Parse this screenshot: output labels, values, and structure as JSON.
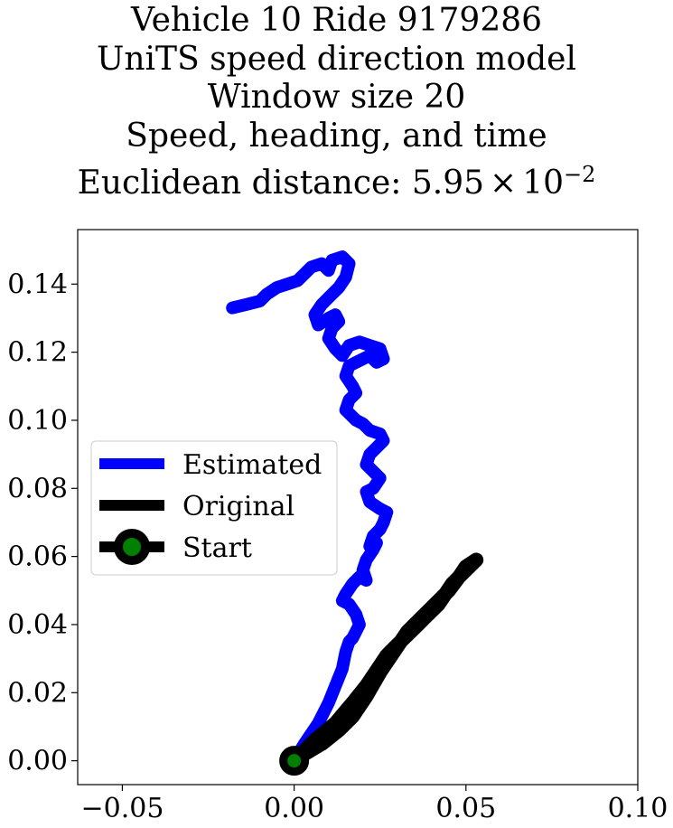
{
  "chart_data": {
    "type": "line",
    "title_lines": [
      "Vehicle 10 Ride 9179286",
      "UniTS speed direction model",
      "Window size 20",
      "Speed, heading, and time"
    ],
    "title_metric_prefix": "Euclidean distance: ",
    "title_metric_mantissa": "5.95",
    "title_metric_times": "×",
    "title_metric_base": "10",
    "title_metric_exponent": "−2",
    "xlabel": "",
    "ylabel": "",
    "xlim": [
      -0.063,
      0.1
    ],
    "ylim": [
      -0.007,
      0.156
    ],
    "x_ticks": [
      -0.05,
      0.0,
      0.05,
      0.1
    ],
    "x_tick_labels": [
      "−0.05",
      "0.00",
      "0.05",
      "0.10"
    ],
    "y_ticks": [
      0.0,
      0.02,
      0.04,
      0.06,
      0.08,
      0.1,
      0.12,
      0.14
    ],
    "y_tick_labels": [
      "0.00",
      "0.02",
      "0.04",
      "0.06",
      "0.08",
      "0.10",
      "0.12",
      "0.14"
    ],
    "grid": false,
    "legend_position": "center-left",
    "series": [
      {
        "name": "Estimated",
        "color": "#0000ff",
        "x": [
          0.0,
          0.003,
          0.007,
          0.01,
          0.012,
          0.014,
          0.015,
          0.016,
          0.017,
          0.019,
          0.018,
          0.016,
          0.014,
          0.015,
          0.017,
          0.019,
          0.021,
          0.02,
          0.021,
          0.023,
          0.024,
          0.022,
          0.023,
          0.025,
          0.026,
          0.027,
          0.025,
          0.022,
          0.021,
          0.023,
          0.025,
          0.023,
          0.021,
          0.022,
          0.024,
          0.026,
          0.025,
          0.022,
          0.02,
          0.018,
          0.015,
          0.016,
          0.018,
          0.017,
          0.015,
          0.016,
          0.018,
          0.02,
          0.022,
          0.024,
          0.026,
          0.025,
          0.022,
          0.019,
          0.016,
          0.014,
          0.012,
          0.01,
          0.011,
          0.013,
          0.012,
          0.01,
          0.007,
          0.006,
          0.008,
          0.01,
          0.013,
          0.015,
          0.016,
          0.014,
          0.011,
          0.01,
          0.008,
          0.005,
          0.003,
          0.001,
          -0.002,
          -0.005,
          -0.008,
          -0.01,
          -0.014,
          -0.018
        ],
        "y": [
          0.0,
          0.005,
          0.011,
          0.017,
          0.022,
          0.027,
          0.032,
          0.035,
          0.036,
          0.04,
          0.043,
          0.046,
          0.047,
          0.049,
          0.052,
          0.054,
          0.053,
          0.056,
          0.059,
          0.062,
          0.064,
          0.063,
          0.066,
          0.068,
          0.07,
          0.073,
          0.074,
          0.076,
          0.079,
          0.08,
          0.083,
          0.085,
          0.087,
          0.09,
          0.092,
          0.094,
          0.096,
          0.097,
          0.099,
          0.1,
          0.103,
          0.106,
          0.108,
          0.11,
          0.113,
          0.116,
          0.117,
          0.118,
          0.119,
          0.117,
          0.118,
          0.121,
          0.122,
          0.123,
          0.122,
          0.119,
          0.121,
          0.124,
          0.127,
          0.129,
          0.131,
          0.13,
          0.128,
          0.131,
          0.134,
          0.136,
          0.139,
          0.142,
          0.146,
          0.148,
          0.147,
          0.144,
          0.146,
          0.145,
          0.143,
          0.141,
          0.14,
          0.139,
          0.137,
          0.135,
          0.134,
          0.133
        ]
      },
      {
        "name": "Original",
        "color": "#000000",
        "x": [
          0.0,
          0.006,
          0.012,
          0.017,
          0.021,
          0.025,
          0.027,
          0.029,
          0.032,
          0.034,
          0.036,
          0.038,
          0.04,
          0.042,
          0.044,
          0.046,
          0.048,
          0.05,
          0.053,
          0.048,
          0.045,
          0.041,
          0.037,
          0.033,
          0.029,
          0.025,
          0.021,
          0.017,
          0.013,
          0.008,
          0.003
        ],
        "y": [
          0.0,
          0.006,
          0.011,
          0.017,
          0.022,
          0.028,
          0.031,
          0.033,
          0.036,
          0.038,
          0.04,
          0.042,
          0.044,
          0.046,
          0.049,
          0.052,
          0.054,
          0.057,
          0.059,
          0.054,
          0.05,
          0.046,
          0.042,
          0.038,
          0.032,
          0.026,
          0.019,
          0.013,
          0.009,
          0.005,
          0.002
        ]
      }
    ],
    "start_marker": {
      "name": "Start",
      "x": 0.0,
      "y": 0.0,
      "edge_color": "#000000",
      "face_color": "#008000"
    }
  }
}
